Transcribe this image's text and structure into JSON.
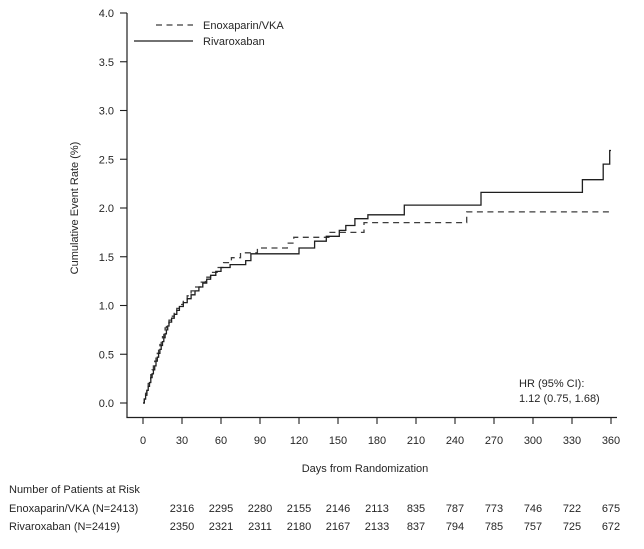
{
  "chart_data": {
    "type": "line",
    "subtype": "step",
    "title": "",
    "xlabel": "Days from Randomization",
    "ylabel": "Cumulative Event Rate (%)",
    "xlim": [
      0,
      360
    ],
    "ylim": [
      0.0,
      4.0
    ],
    "x_ticks": [
      0,
      30,
      60,
      90,
      120,
      150,
      180,
      210,
      240,
      270,
      300,
      330,
      360
    ],
    "y_tick_labels": [
      "0.0",
      "0.5",
      "1.0",
      "1.5",
      "2.0",
      "2.5",
      "3.0",
      "3.5",
      "4.0"
    ],
    "grid": false,
    "legend_position": "top-left-inside",
    "series": [
      {
        "name": "Enoxaparin/VKA",
        "line_style": "dashed",
        "color": "#3c3c3c",
        "points": [
          [
            0,
            0
          ],
          [
            1,
            0.05
          ],
          [
            2,
            0.1
          ],
          [
            3,
            0.15
          ],
          [
            4,
            0.2
          ],
          [
            5,
            0.25
          ],
          [
            6,
            0.29
          ],
          [
            7,
            0.34
          ],
          [
            8,
            0.38
          ],
          [
            9,
            0.43
          ],
          [
            10,
            0.47
          ],
          [
            11,
            0.51
          ],
          [
            12,
            0.56
          ],
          [
            13,
            0.6
          ],
          [
            14,
            0.64
          ],
          [
            15,
            0.68
          ],
          [
            16,
            0.72
          ],
          [
            17,
            0.77
          ],
          [
            18,
            0.81
          ],
          [
            20,
            0.85
          ],
          [
            22,
            0.89
          ],
          [
            24,
            0.93
          ],
          [
            26,
            0.97
          ],
          [
            28,
            1.01
          ],
          [
            31,
            1.06
          ],
          [
            34,
            1.1
          ],
          [
            37,
            1.15
          ],
          [
            40,
            1.19
          ],
          [
            44,
            1.24
          ],
          [
            48,
            1.29
          ],
          [
            52,
            1.34
          ],
          [
            57,
            1.39
          ],
          [
            62,
            1.44
          ],
          [
            68,
            1.49
          ],
          [
            75,
            1.54
          ],
          [
            88,
            1.59
          ],
          [
            111,
            1.64
          ],
          [
            116,
            1.7
          ],
          [
            143,
            1.75
          ],
          [
            170,
            1.85
          ],
          [
            249,
            1.96
          ],
          [
            360,
            1.96
          ]
        ]
      },
      {
        "name": "Rivaroxaban",
        "line_style": "solid",
        "color": "#1f1f1f",
        "points": [
          [
            0,
            0
          ],
          [
            1,
            0.04
          ],
          [
            2,
            0.08
          ],
          [
            3,
            0.13
          ],
          [
            4,
            0.17
          ],
          [
            5,
            0.21
          ],
          [
            6,
            0.26
          ],
          [
            7,
            0.3
          ],
          [
            8,
            0.34
          ],
          [
            9,
            0.38
          ],
          [
            10,
            0.43
          ],
          [
            11,
            0.47
          ],
          [
            12,
            0.51
          ],
          [
            13,
            0.55
          ],
          [
            14,
            0.59
          ],
          [
            15,
            0.63
          ],
          [
            16,
            0.67
          ],
          [
            17,
            0.71
          ],
          [
            18,
            0.75
          ],
          [
            19,
            0.79
          ],
          [
            20,
            0.83
          ],
          [
            22,
            0.87
          ],
          [
            24,
            0.91
          ],
          [
            26,
            0.95
          ],
          [
            28,
            0.99
          ],
          [
            31,
            1.03
          ],
          [
            34,
            1.07
          ],
          [
            37,
            1.11
          ],
          [
            40,
            1.15
          ],
          [
            43,
            1.19
          ],
          [
            46,
            1.23
          ],
          [
            49,
            1.27
          ],
          [
            52,
            1.31
          ],
          [
            56,
            1.35
          ],
          [
            60,
            1.39
          ],
          [
            67,
            1.42
          ],
          [
            79,
            1.46
          ],
          [
            83,
            1.53
          ],
          [
            120,
            1.59
          ],
          [
            132,
            1.66
          ],
          [
            141,
            1.71
          ],
          [
            151,
            1.77
          ],
          [
            156,
            1.82
          ],
          [
            163,
            1.89
          ],
          [
            173,
            1.93
          ],
          [
            201,
            2.03
          ],
          [
            260,
            2.16
          ],
          [
            338,
            2.29
          ],
          [
            354,
            2.45
          ],
          [
            359,
            2.59
          ],
          [
            360,
            2.59
          ]
        ]
      }
    ],
    "annotation": {
      "lines": [
        "HR (95% CI):",
        "1.12 (0.75, 1.68)"
      ],
      "position": "bottom-right"
    }
  },
  "at_risk_table": {
    "title": "Number of Patients at Risk",
    "time_points": [
      30,
      60,
      90,
      120,
      150,
      180,
      210,
      240,
      270,
      300,
      330,
      360
    ],
    "rows": [
      {
        "label": "Enoxaparin/VKA (N=2413)",
        "counts": [
          2316,
          2295,
          2280,
          2155,
          2146,
          2113,
          835,
          787,
          773,
          746,
          722,
          675
        ]
      },
      {
        "label": "Rivaroxaban (N=2419)",
        "counts": [
          2350,
          2321,
          2311,
          2180,
          2167,
          2133,
          837,
          794,
          785,
          757,
          725,
          672
        ]
      }
    ]
  }
}
